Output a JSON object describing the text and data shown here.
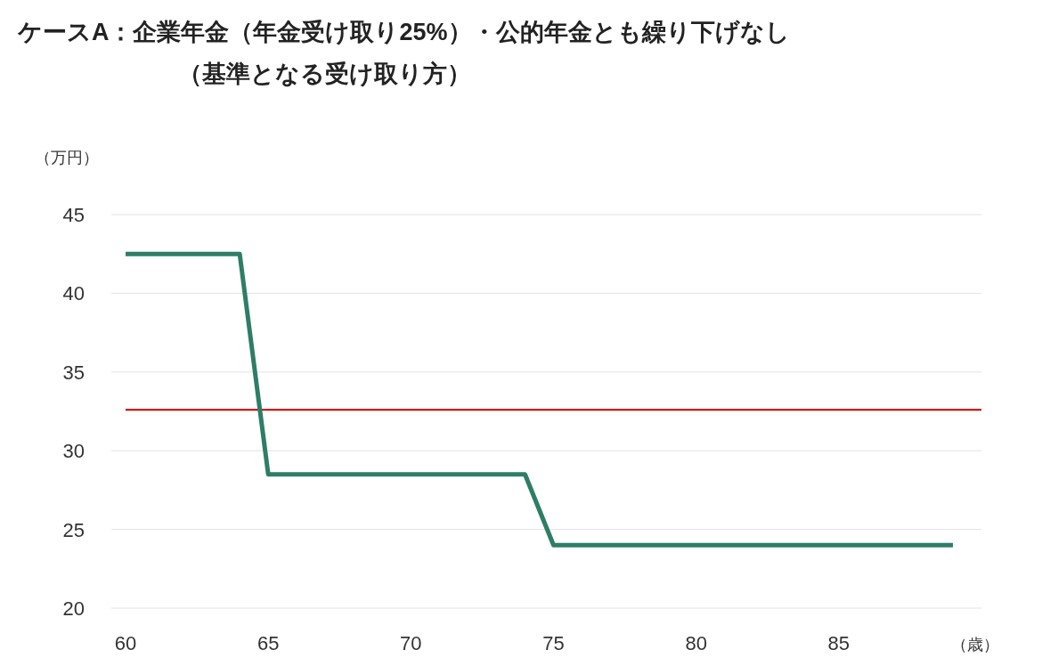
{
  "chart_data": {
    "type": "line",
    "title": "ケースA：企業年金（年金受け取り25%）・公的年金とも繰り下げなし",
    "subtitle": "（基準となる受け取り方）",
    "xlabel": "（歳）",
    "ylabel": "（万円）",
    "x": [
      60,
      64,
      65,
      74,
      75,
      89
    ],
    "series": [
      {
        "color": "#2e7d67",
        "values": [
          42.5,
          42.5,
          28.5,
          28.5,
          24,
          24
        ]
      }
    ],
    "xlim": [
      59.5,
      90
    ],
    "xticks": [
      60,
      65,
      70,
      75,
      80,
      85
    ],
    "ylim": [
      20,
      45
    ],
    "yticks": [
      20,
      25,
      30,
      35,
      40,
      45
    ],
    "grid": "y",
    "ref_lines": [
      {
        "axis": "y",
        "value": 32.6,
        "color": "#c00000"
      }
    ]
  }
}
